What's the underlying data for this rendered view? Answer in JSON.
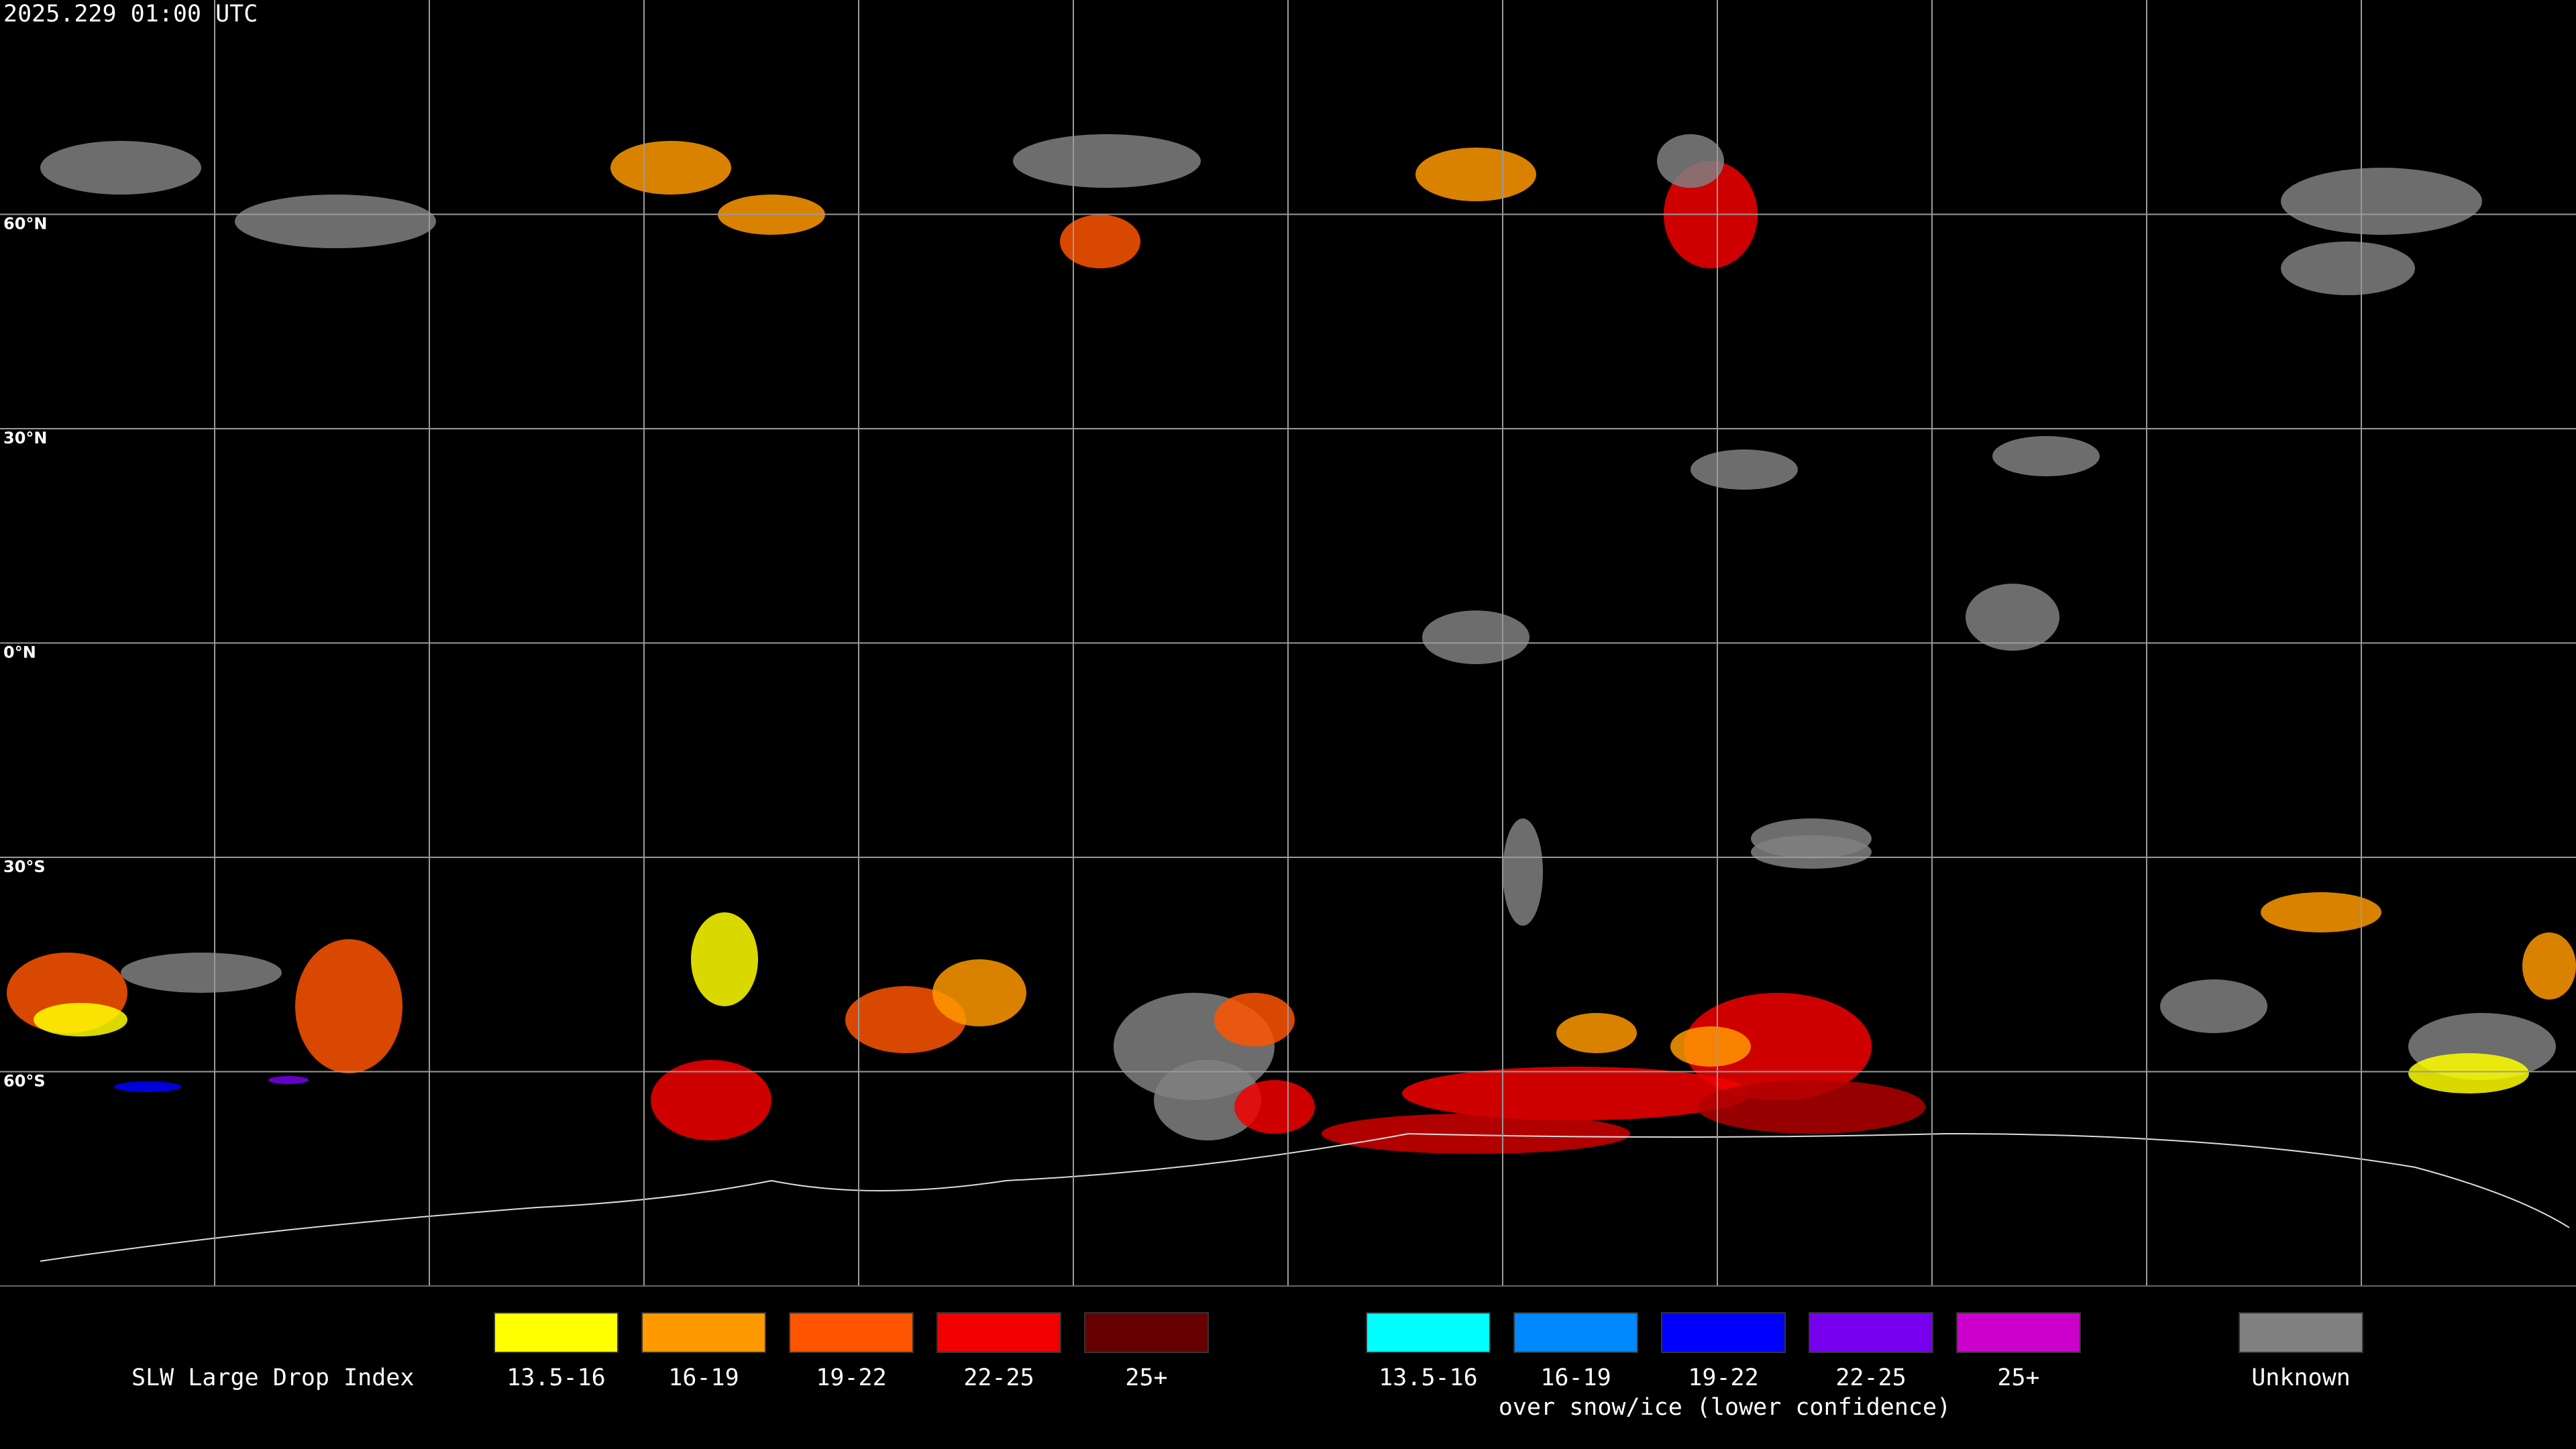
{
  "header": {
    "timestamp": "2025.229 01:00 UTC"
  },
  "map": {
    "lat_labels": [
      "60°N",
      "30°N",
      "0°N",
      "30°S",
      "60°S"
    ]
  },
  "legend": {
    "title": "SLW Large Drop Index",
    "main": [
      {
        "label": "13.5-16",
        "color": "#ffff00"
      },
      {
        "label": "16-19",
        "color": "#ff9900"
      },
      {
        "label": "19-22",
        "color": "#ff5500"
      },
      {
        "label": "22-25",
        "color": "#f20000"
      },
      {
        "label": "25+",
        "color": "#660000"
      }
    ],
    "snow_ice": [
      {
        "label": "13.5-16",
        "color": "#00ffff"
      },
      {
        "label": "16-19",
        "color": "#0088ff"
      },
      {
        "label": "19-22",
        "color": "#0000ff"
      },
      {
        "label": "22-25",
        "color": "#7700ee"
      },
      {
        "label": "25+",
        "color": "#cc00cc"
      }
    ],
    "snow_ice_caption": "over snow/ice (lower confidence)",
    "unknown": {
      "label": "Unknown",
      "color": "#808080"
    }
  }
}
